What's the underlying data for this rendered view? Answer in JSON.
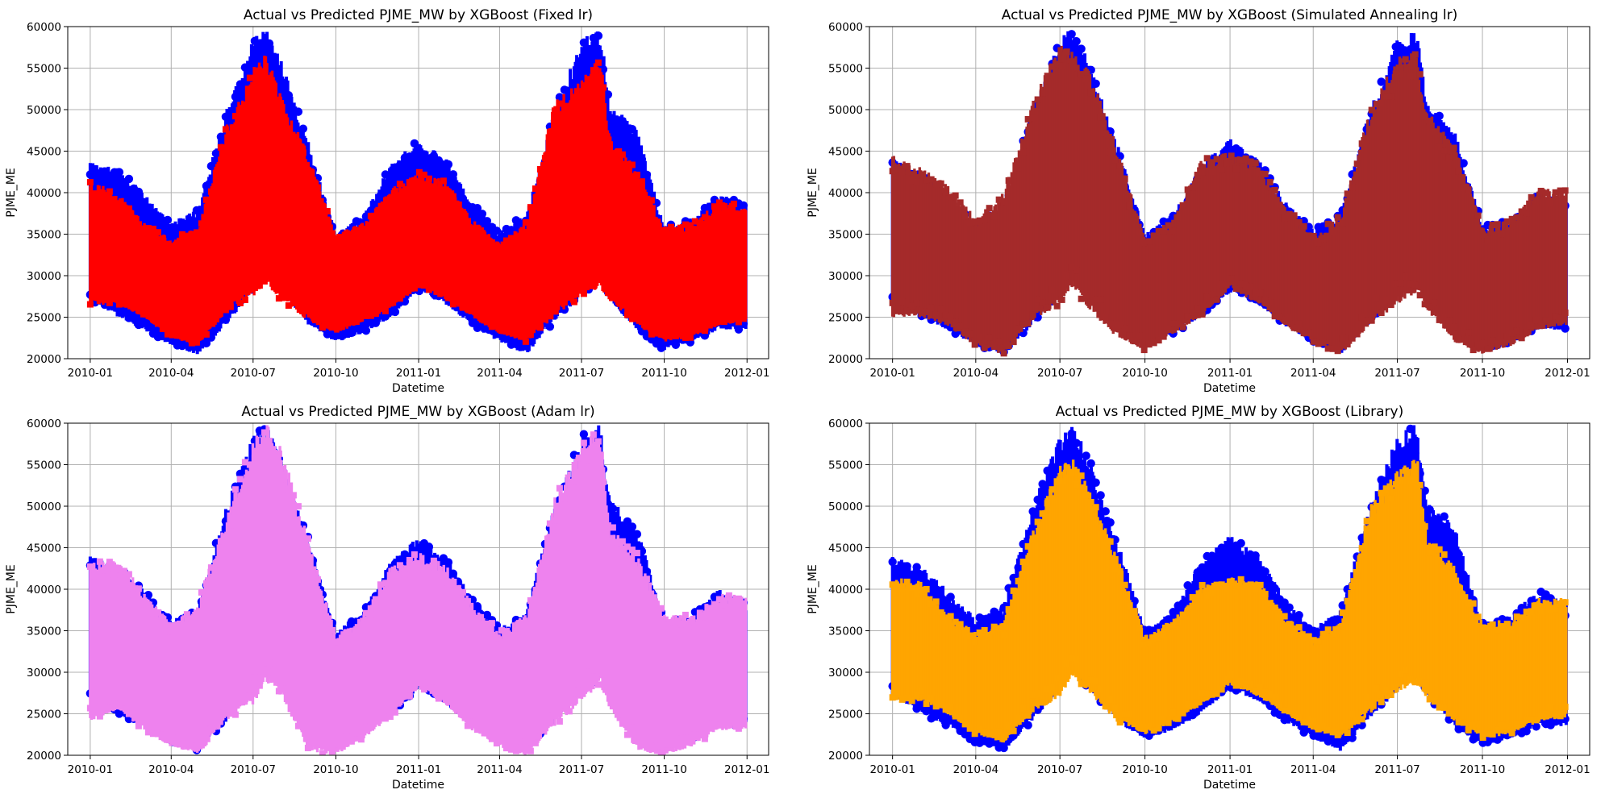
{
  "figure": {
    "background": "#ffffff",
    "grid_color": "#b0b0b0"
  },
  "chart_data": [
    {
      "type": "scatter",
      "title": "Actual vs Predicted PJME_MW by XGBoost (Fixed lr)",
      "xlabel": "Datetime",
      "ylabel": "PJME_ME",
      "xticks": [
        "2010-01",
        "2010-04",
        "2010-07",
        "2010-10",
        "2011-01",
        "2011-04",
        "2011-07",
        "2011-10",
        "2012-01"
      ],
      "xlim": [
        "2009-12-07",
        "2012-01-25"
      ],
      "yticks": [
        20000,
        25000,
        30000,
        35000,
        40000,
        45000,
        50000,
        55000,
        60000
      ],
      "ylim": [
        20000,
        60000
      ],
      "grid": true,
      "series": [
        {
          "role": "actual",
          "color": "#0000ff",
          "marker": "circle",
          "x": [
            "2010-01-01",
            "2010-02-01",
            "2010-03-01",
            "2010-04-01",
            "2010-05-01",
            "2010-06-01",
            "2010-07-01",
            "2010-07-15",
            "2010-08-01",
            "2010-09-01",
            "2010-10-01",
            "2010-11-01",
            "2010-12-01",
            "2011-01-01",
            "2011-02-01",
            "2011-03-01",
            "2011-04-01",
            "2011-05-01",
            "2011-06-01",
            "2011-07-01",
            "2011-07-22",
            "2011-08-01",
            "2011-09-01",
            "2011-10-01",
            "2011-11-01",
            "2011-12-01",
            "2011-12-31"
          ],
          "low": [
            27000,
            25000,
            23500,
            21500,
            20500,
            24000,
            28000,
            30000,
            28000,
            24000,
            22000,
            23000,
            25000,
            28000,
            26500,
            24000,
            22000,
            20500,
            24500,
            27500,
            29500,
            27000,
            23500,
            21000,
            22000,
            23500,
            23500
          ],
          "high": [
            44000,
            43000,
            40000,
            36500,
            38000,
            50000,
            58500,
            60000,
            56000,
            46000,
            35000,
            37500,
            43500,
            46500,
            44000,
            39000,
            35500,
            37500,
            50000,
            58500,
            60000,
            51000,
            47500,
            36000,
            37000,
            40000,
            38500
          ]
        },
        {
          "role": "predicted",
          "color": "#ff0000",
          "marker": "square",
          "x": [
            "2010-01-01",
            "2010-02-01",
            "2010-03-01",
            "2010-04-01",
            "2010-05-01",
            "2010-06-01",
            "2010-07-01",
            "2010-07-15",
            "2010-08-01",
            "2010-09-01",
            "2010-10-01",
            "2010-11-01",
            "2010-12-01",
            "2011-01-01",
            "2011-02-01",
            "2011-03-01",
            "2011-04-01",
            "2011-05-01",
            "2011-06-01",
            "2011-07-01",
            "2011-07-22",
            "2011-08-01",
            "2011-09-01",
            "2011-10-01",
            "2011-11-01",
            "2011-12-01",
            "2011-12-31"
          ],
          "low": [
            26500,
            26500,
            25000,
            22500,
            21500,
            25500,
            27500,
            29000,
            27000,
            24500,
            23000,
            24500,
            26000,
            28500,
            27000,
            25000,
            23000,
            22000,
            25000,
            27500,
            28500,
            27000,
            24000,
            22000,
            22500,
            24000,
            24500
          ],
          "high": [
            41500,
            40000,
            36500,
            34500,
            36000,
            48000,
            55000,
            57000,
            52000,
            44500,
            35000,
            36500,
            40500,
            42500,
            41500,
            37000,
            34000,
            36500,
            51000,
            54000,
            56500,
            47000,
            43000,
            36000,
            36500,
            39000,
            38500
          ]
        }
      ]
    },
    {
      "type": "scatter",
      "title": "Actual vs Predicted PJME_MW by XGBoost (Simulated Annealing lr)",
      "xlabel": "Datetime",
      "ylabel": "PJME_ME",
      "xticks": [
        "2010-01",
        "2010-04",
        "2010-07",
        "2010-10",
        "2011-01",
        "2011-04",
        "2011-07",
        "2011-10",
        "2012-01"
      ],
      "xlim": [
        "2009-12-07",
        "2012-01-25"
      ],
      "yticks": [
        20000,
        25000,
        30000,
        35000,
        40000,
        45000,
        50000,
        55000,
        60000
      ],
      "ylim": [
        20000,
        60000
      ],
      "grid": true,
      "series": [
        {
          "role": "actual",
          "color": "#0000ff",
          "marker": "circle",
          "x": [
            "2010-01-01",
            "2010-02-01",
            "2010-03-01",
            "2010-04-01",
            "2010-05-01",
            "2010-06-01",
            "2010-07-01",
            "2010-07-15",
            "2010-08-01",
            "2010-09-01",
            "2010-10-01",
            "2010-11-01",
            "2010-12-01",
            "2011-01-01",
            "2011-02-01",
            "2011-03-01",
            "2011-04-01",
            "2011-05-01",
            "2011-06-01",
            "2011-07-01",
            "2011-07-22",
            "2011-08-01",
            "2011-09-01",
            "2011-10-01",
            "2011-11-01",
            "2011-12-01",
            "2011-12-31"
          ],
          "low": [
            27000,
            25000,
            23500,
            21500,
            20500,
            24000,
            28000,
            30000,
            28000,
            24000,
            22000,
            23000,
            25000,
            28000,
            26500,
            24000,
            22000,
            20500,
            24500,
            27500,
            29500,
            27000,
            23500,
            21000,
            22000,
            23500,
            23500
          ],
          "high": [
            44000,
            43000,
            40000,
            36500,
            38000,
            50000,
            58500,
            60000,
            56000,
            46000,
            35000,
            37500,
            43500,
            46500,
            44000,
            39000,
            35500,
            37500,
            50000,
            58500,
            60000,
            51000,
            47500,
            36000,
            37000,
            40000,
            38500
          ]
        },
        {
          "role": "predicted",
          "color": "#a52a2a",
          "marker": "square",
          "x": [
            "2010-01-01",
            "2010-02-01",
            "2010-03-01",
            "2010-04-01",
            "2010-05-01",
            "2010-06-01",
            "2010-07-01",
            "2010-07-15",
            "2010-08-01",
            "2010-09-01",
            "2010-10-01",
            "2010-11-01",
            "2010-12-01",
            "2011-01-01",
            "2011-02-01",
            "2011-03-01",
            "2011-04-01",
            "2011-05-01",
            "2011-06-01",
            "2011-07-01",
            "2011-07-22",
            "2011-08-01",
            "2011-09-01",
            "2011-10-01",
            "2011-11-01",
            "2011-12-01",
            "2011-12-31"
          ],
          "low": [
            25000,
            25000,
            24000,
            21500,
            20500,
            24500,
            26500,
            28500,
            26000,
            22500,
            21000,
            23000,
            25000,
            28500,
            26500,
            24000,
            22000,
            20500,
            24000,
            26500,
            28000,
            26000,
            22000,
            20500,
            21500,
            23500,
            24000
          ],
          "high": [
            44500,
            43000,
            41000,
            37000,
            40000,
            51000,
            58500,
            57500,
            55000,
            45500,
            34500,
            37000,
            44000,
            45000,
            43500,
            38500,
            35000,
            37500,
            50000,
            56500,
            57000,
            50000,
            46000,
            36000,
            37000,
            40500,
            40500
          ]
        }
      ]
    },
    {
      "type": "scatter",
      "title": "Actual vs Predicted PJME_MW by XGBoost (Adam lr)",
      "xlabel": "Datetime",
      "ylabel": "PJME_ME",
      "xticks": [
        "2010-01",
        "2010-04",
        "2010-07",
        "2010-10",
        "2011-01",
        "2011-04",
        "2011-07",
        "2011-10",
        "2012-01"
      ],
      "xlim": [
        "2009-12-07",
        "2012-01-25"
      ],
      "yticks": [
        20000,
        25000,
        30000,
        35000,
        40000,
        45000,
        50000,
        55000,
        60000
      ],
      "ylim": [
        20000,
        60000
      ],
      "grid": true,
      "series": [
        {
          "role": "actual",
          "color": "#0000ff",
          "marker": "circle",
          "x": [
            "2010-01-01",
            "2010-02-01",
            "2010-03-01",
            "2010-04-01",
            "2010-05-01",
            "2010-06-01",
            "2010-07-01",
            "2010-07-15",
            "2010-08-01",
            "2010-09-01",
            "2010-10-01",
            "2010-11-01",
            "2010-12-01",
            "2011-01-01",
            "2011-02-01",
            "2011-03-01",
            "2011-04-01",
            "2011-05-01",
            "2011-06-01",
            "2011-07-01",
            "2011-07-22",
            "2011-08-01",
            "2011-09-01",
            "2011-10-01",
            "2011-11-01",
            "2011-12-01",
            "2011-12-31"
          ],
          "low": [
            27000,
            25000,
            23500,
            21500,
            20500,
            24000,
            28000,
            30000,
            28000,
            24000,
            22000,
            23000,
            25000,
            28000,
            26500,
            24000,
            22000,
            20500,
            24500,
            27500,
            29500,
            27000,
            23500,
            21000,
            22000,
            23500,
            23500
          ],
          "high": [
            44000,
            43000,
            40000,
            36500,
            38000,
            50000,
            58500,
            60000,
            56000,
            46000,
            35000,
            37500,
            43500,
            46500,
            44000,
            39000,
            35500,
            37500,
            50000,
            58500,
            60000,
            51000,
            47500,
            36000,
            37000,
            40000,
            38500
          ]
        },
        {
          "role": "predicted",
          "color": "#ee82ee",
          "marker": "square",
          "x": [
            "2010-01-01",
            "2010-02-01",
            "2010-03-01",
            "2010-04-01",
            "2010-05-01",
            "2010-06-01",
            "2010-07-01",
            "2010-07-15",
            "2010-08-01",
            "2010-09-01",
            "2010-10-01",
            "2010-11-01",
            "2010-12-01",
            "2011-01-01",
            "2011-02-01",
            "2011-03-01",
            "2011-04-01",
            "2011-05-01",
            "2011-06-01",
            "2011-07-01",
            "2011-07-22",
            "2011-08-01",
            "2011-09-01",
            "2011-10-01",
            "2011-11-01",
            "2011-12-01",
            "2011-12-31"
          ],
          "low": [
            24000,
            25500,
            23000,
            21000,
            20000,
            24000,
            26000,
            29000,
            27000,
            20500,
            20000,
            22000,
            24500,
            28000,
            26000,
            23000,
            21000,
            20000,
            23500,
            26500,
            28500,
            25500,
            20500,
            20000,
            21000,
            23000,
            23000
          ],
          "high": [
            43500,
            43500,
            40000,
            36000,
            38500,
            49000,
            58000,
            60000,
            57500,
            46000,
            34500,
            37000,
            43000,
            44500,
            43000,
            38500,
            35000,
            37000,
            51000,
            57500,
            59500,
            48000,
            44500,
            37000,
            37000,
            39500,
            39500
          ]
        }
      ]
    },
    {
      "type": "scatter",
      "title": "Actual vs Predicted PJME_MW by XGBoost  (Library)",
      "xlabel": "Datetime",
      "ylabel": "PJME_ME",
      "xticks": [
        "2010-01",
        "2010-04",
        "2010-07",
        "2010-10",
        "2011-01",
        "2011-04",
        "2011-07",
        "2011-10",
        "2012-01"
      ],
      "xlim": [
        "2009-12-07",
        "2012-01-25"
      ],
      "yticks": [
        20000,
        25000,
        30000,
        35000,
        40000,
        45000,
        50000,
        55000,
        60000
      ],
      "ylim": [
        20000,
        60000
      ],
      "grid": true,
      "series": [
        {
          "role": "actual",
          "color": "#0000ff",
          "marker": "circle",
          "x": [
            "2010-01-01",
            "2010-02-01",
            "2010-03-01",
            "2010-04-01",
            "2010-05-01",
            "2010-06-01",
            "2010-07-01",
            "2010-07-15",
            "2010-08-01",
            "2010-09-01",
            "2010-10-01",
            "2010-11-01",
            "2010-12-01",
            "2011-01-01",
            "2011-02-01",
            "2011-03-01",
            "2011-04-01",
            "2011-05-01",
            "2011-06-01",
            "2011-07-01",
            "2011-07-22",
            "2011-08-01",
            "2011-09-01",
            "2011-10-01",
            "2011-11-01",
            "2011-12-01",
            "2011-12-31"
          ],
          "low": [
            27000,
            25000,
            23500,
            21500,
            20500,
            24000,
            28000,
            30000,
            28000,
            24000,
            22000,
            23000,
            25000,
            28000,
            26500,
            24000,
            22000,
            20500,
            24500,
            27500,
            29500,
            27000,
            23500,
            21000,
            22000,
            23500,
            23500
          ],
          "high": [
            44000,
            43000,
            40000,
            36500,
            38000,
            50000,
            58500,
            60000,
            56000,
            46000,
            35000,
            37500,
            43500,
            46500,
            44000,
            39000,
            35500,
            37500,
            50000,
            58500,
            60000,
            51000,
            47500,
            36000,
            37000,
            40000,
            38500
          ]
        },
        {
          "role": "predicted",
          "color": "#ffa500",
          "marker": "square",
          "x": [
            "2010-01-01",
            "2010-02-01",
            "2010-03-01",
            "2010-04-01",
            "2010-05-01",
            "2010-06-01",
            "2010-07-01",
            "2010-07-15",
            "2010-08-01",
            "2010-09-01",
            "2010-10-01",
            "2010-11-01",
            "2010-12-01",
            "2011-01-01",
            "2011-02-01",
            "2011-03-01",
            "2011-04-01",
            "2011-05-01",
            "2011-06-01",
            "2011-07-01",
            "2011-07-22",
            "2011-08-01",
            "2011-09-01",
            "2011-10-01",
            "2011-11-01",
            "2011-12-01",
            "2011-12-31"
          ],
          "low": [
            26500,
            26500,
            25000,
            22500,
            21500,
            25000,
            27000,
            29500,
            27500,
            24000,
            22500,
            24000,
            26000,
            28500,
            27000,
            25000,
            23000,
            22000,
            25000,
            27500,
            28500,
            27000,
            24000,
            22000,
            22500,
            24000,
            24500
          ],
          "high": [
            41500,
            41000,
            37000,
            35000,
            36000,
            47000,
            55000,
            56000,
            52500,
            44000,
            34500,
            36500,
            40500,
            41500,
            41000,
            37000,
            34000,
            36500,
            50000,
            54500,
            56500,
            47000,
            43000,
            36000,
            36500,
            39000,
            39000
          ]
        }
      ]
    }
  ]
}
